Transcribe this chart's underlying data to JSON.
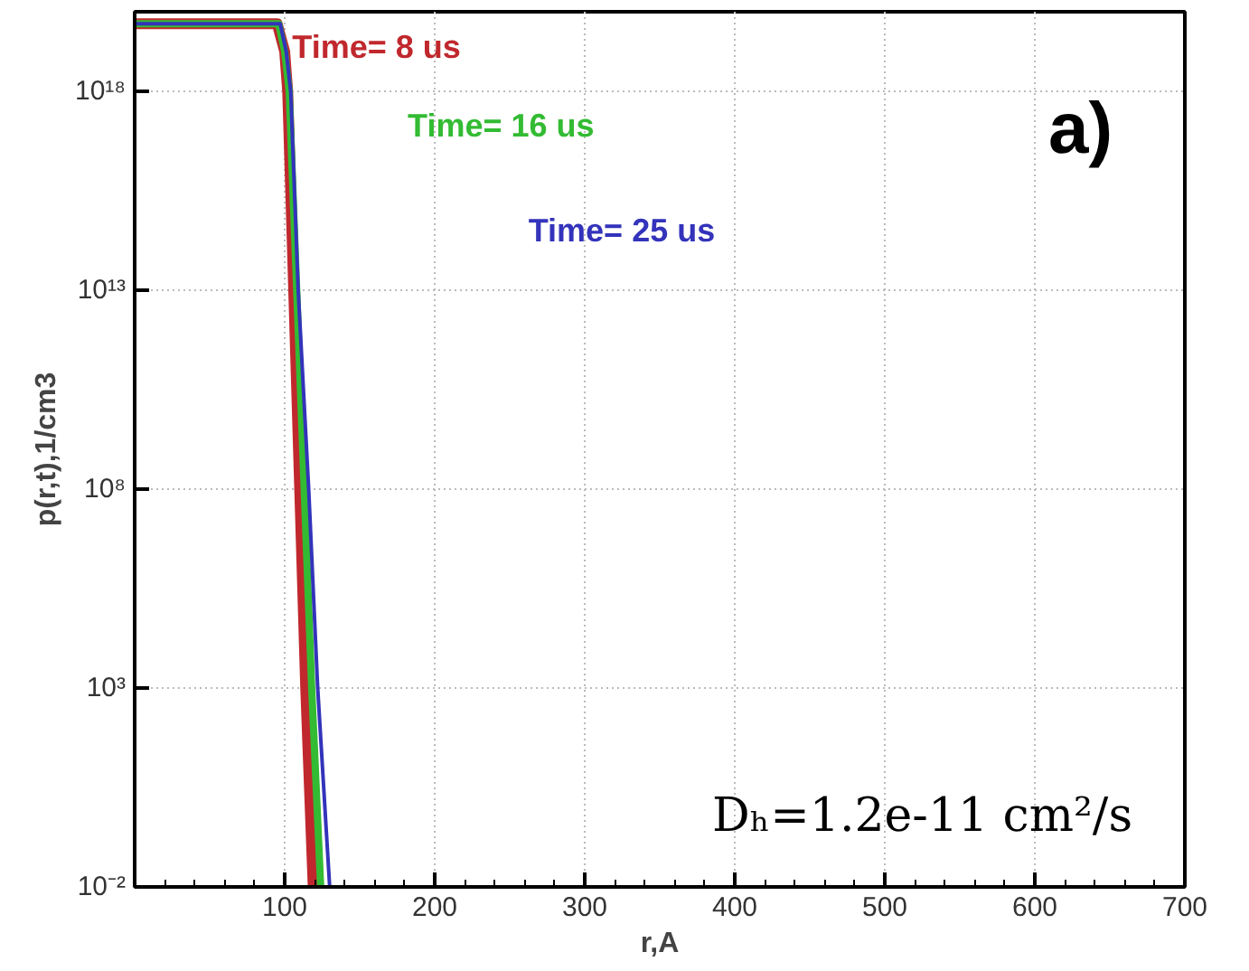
{
  "chart_data": {
    "type": "line",
    "xlabel": "r,A",
    "ylabel": "p(r,t),1/cm3",
    "xlim": [
      0,
      700
    ],
    "ylim": [
      0.01,
      1e+20
    ],
    "xticks": [
      100,
      200,
      300,
      400,
      500,
      600,
      700
    ],
    "yticks": [
      {
        "value": 0.01,
        "label": "10⁻²"
      },
      {
        "value": 1000,
        "label": "10³"
      },
      {
        "value": 100000000.0,
        "label": "10⁸"
      },
      {
        "value": 10000000000000.0,
        "label": "10¹³"
      },
      {
        "value": 1e+18,
        "label": "10¹⁸"
      }
    ],
    "log": "y",
    "grid": true,
    "line_style": "solid",
    "marker": "none",
    "annotations": [
      "a)",
      "Dₕ=1.2e-11 cm²/s"
    ],
    "series": [
      {
        "name": "Time= 8 us",
        "color": "#c0282d",
        "x": [
          0,
          95,
          100,
          102,
          106,
          110,
          114,
          119
        ],
        "values": [
          5e+19,
          5e+19,
          1e+19,
          1e+18,
          10000000000000.0,
          100000000.0,
          1000.0,
          0.01
        ]
      },
      {
        "name": "Time= 16 us",
        "color": "#33bb33",
        "x": [
          0,
          96,
          100,
          103,
          108,
          113,
          118,
          124
        ],
        "values": [
          5e+19,
          5e+19,
          1e+19,
          1e+18,
          10000000000000.0,
          100000000.0,
          1000.0,
          0.01
        ]
      },
      {
        "name": "Time= 25 us",
        "color": "#3333bb",
        "x": [
          0,
          97,
          101,
          104,
          109,
          116,
          122,
          130
        ],
        "values": [
          5e+19,
          5e+19,
          1e+19,
          1e+18,
          10000000000000.0,
          100000000.0,
          1000.0,
          0.01
        ]
      }
    ]
  }
}
